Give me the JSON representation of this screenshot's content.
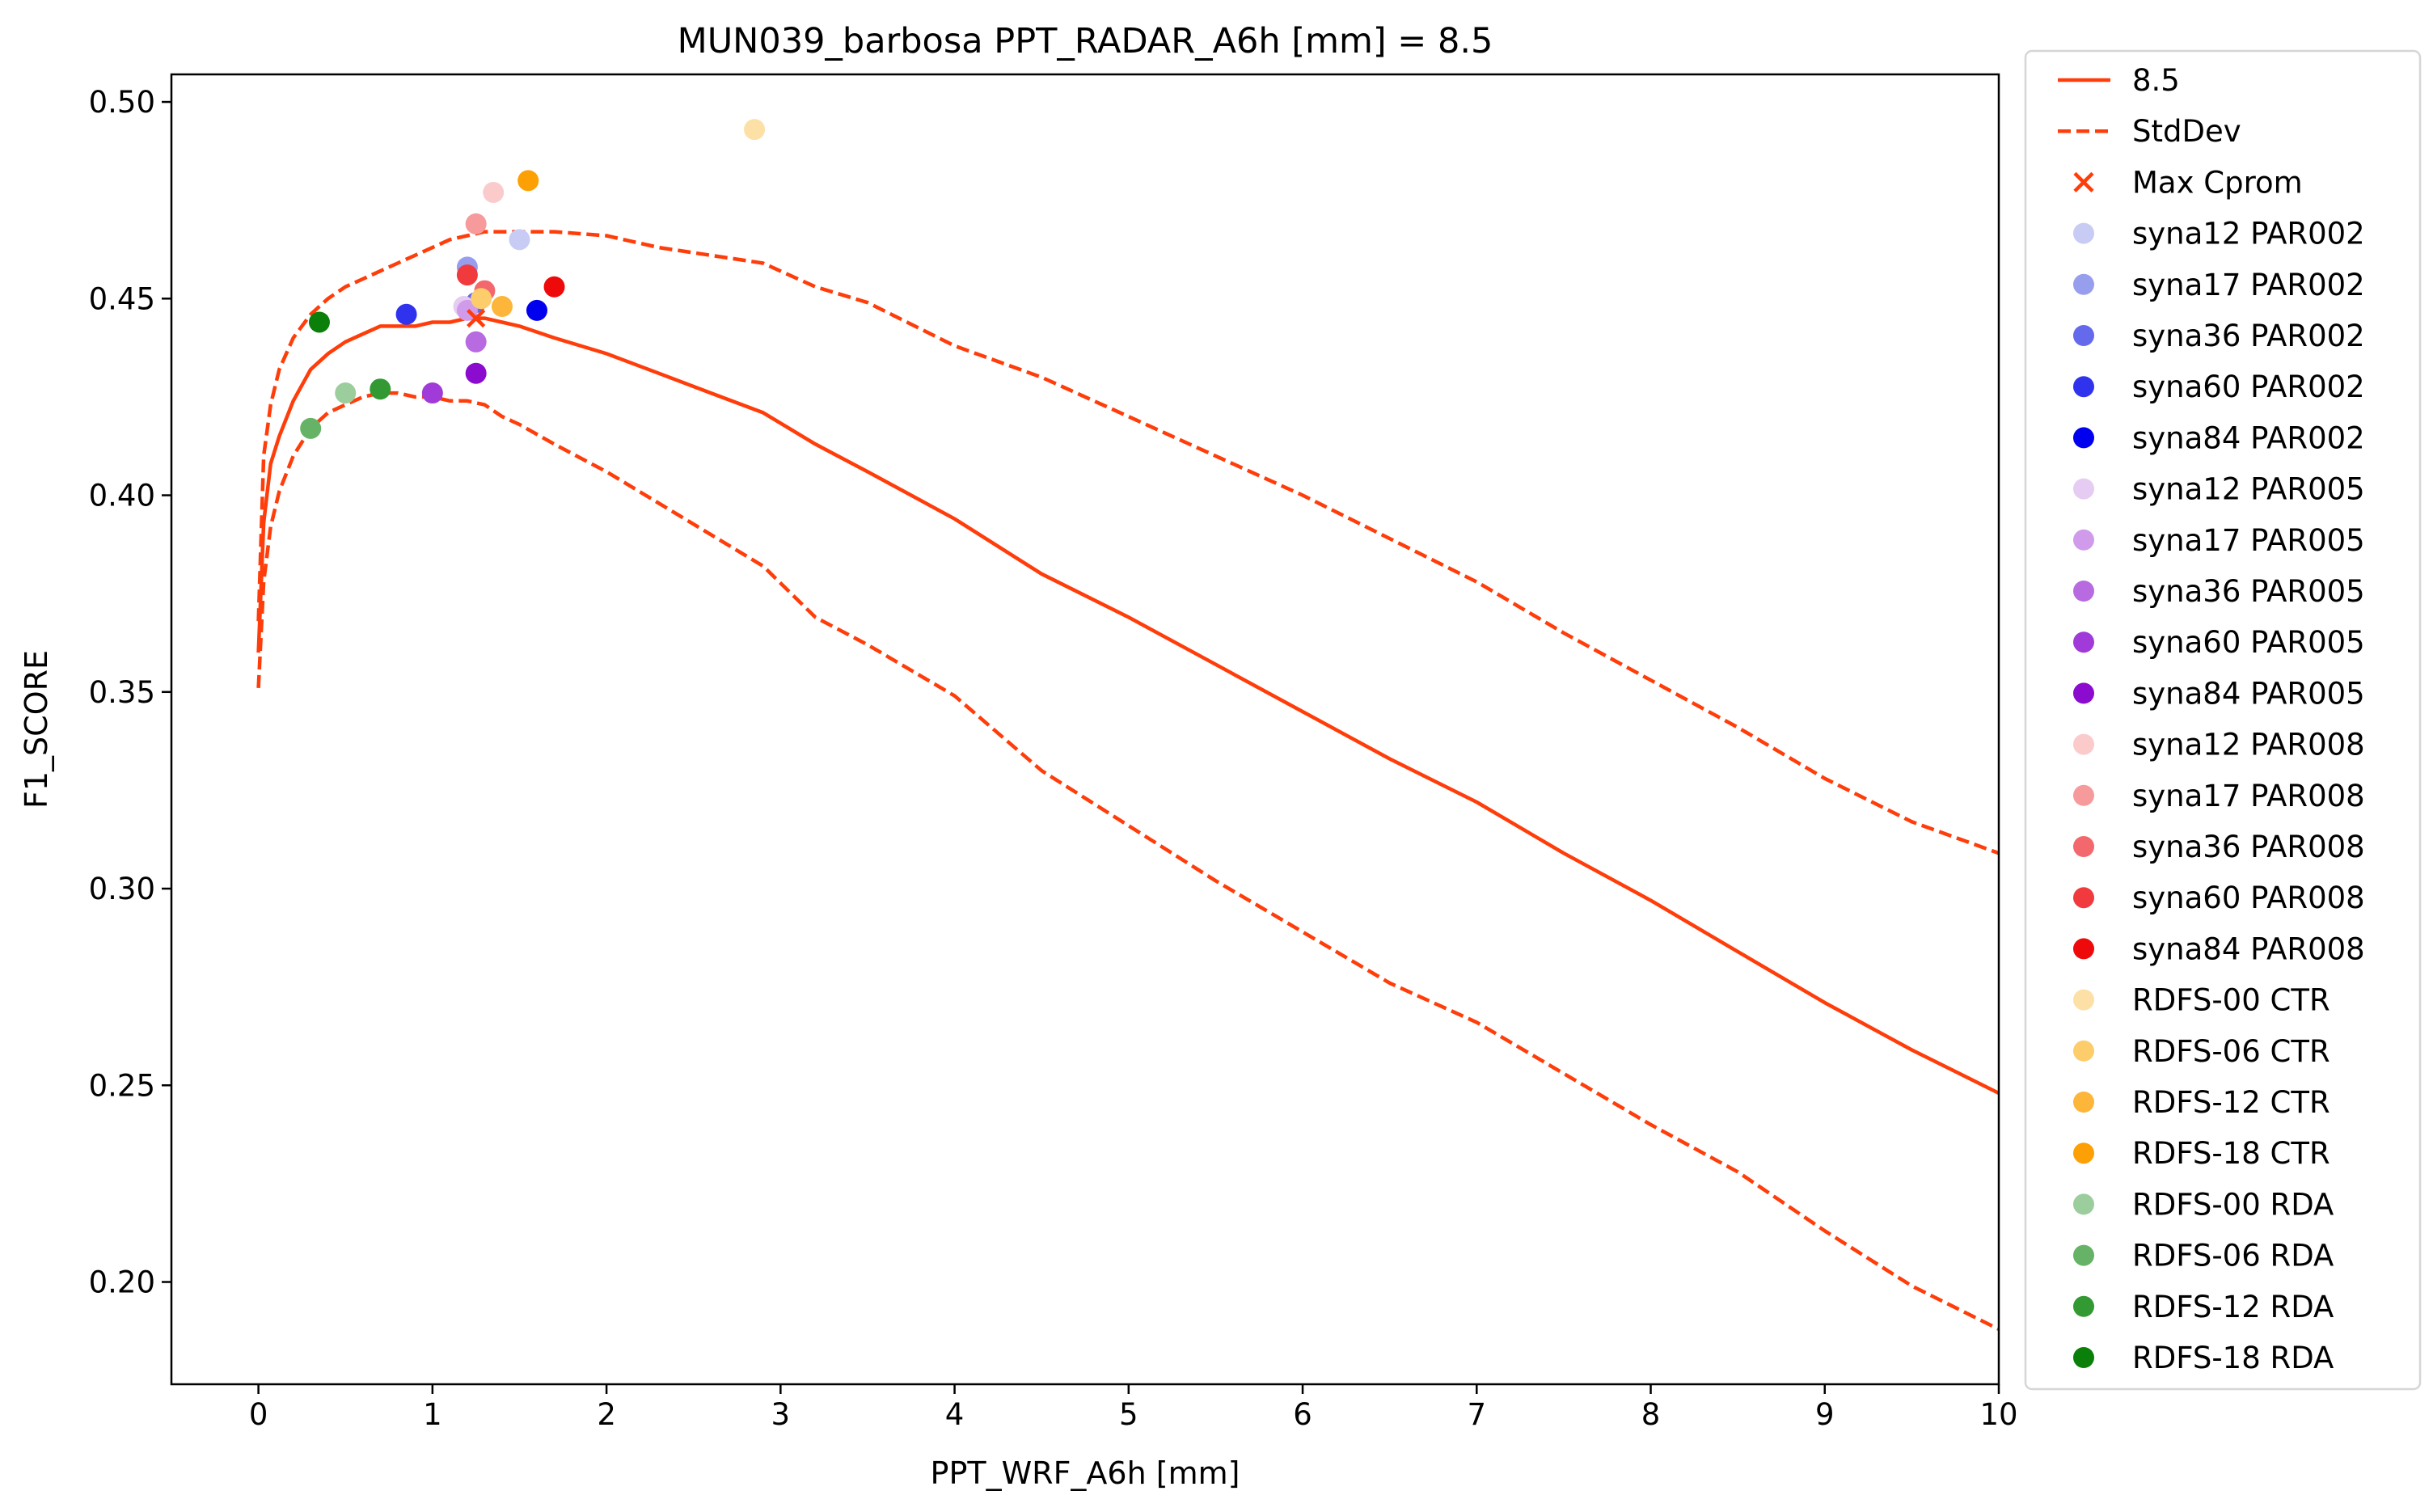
{
  "chart_data": {
    "type": "line",
    "title": "MUN039_barbosa    PPT_RADAR_A6h [mm] = 8.5",
    "xlabel": "PPT_WRF_A6h [mm]",
    "ylabel": "F1_SCORE",
    "xlim": [
      -0.5,
      10
    ],
    "ylim": [
      0.174,
      0.507
    ],
    "xticks": [
      0,
      1,
      2,
      3,
      4,
      5,
      6,
      7,
      8,
      9,
      10
    ],
    "yticks": [
      0.2,
      0.25,
      0.3,
      0.35,
      0.4,
      0.45,
      0.5
    ],
    "ytick_labels": [
      "0.20",
      "0.25",
      "0.30",
      "0.35",
      "0.40",
      "0.45",
      "0.50"
    ],
    "grid": false,
    "legend_position": "outside-right",
    "line_color": "#ff3d0a",
    "lines": [
      {
        "name": "8.5",
        "style": "solid",
        "x": [
          0.0,
          0.03,
          0.07,
          0.12,
          0.2,
          0.3,
          0.4,
          0.5,
          0.6,
          0.7,
          0.8,
          0.9,
          1.0,
          1.1,
          1.2,
          1.3,
          1.4,
          1.5,
          1.7,
          2.0,
          2.3,
          2.6,
          2.9,
          3.2,
          3.5,
          4.0,
          4.5,
          5.0,
          5.5,
          6.0,
          6.5,
          7.0,
          7.5,
          8.0,
          8.5,
          9.0,
          9.5,
          10.0
        ],
        "y": [
          0.36,
          0.393,
          0.408,
          0.415,
          0.424,
          0.432,
          0.436,
          0.439,
          0.441,
          0.443,
          0.443,
          0.443,
          0.444,
          0.444,
          0.445,
          0.445,
          0.444,
          0.443,
          0.44,
          0.436,
          0.431,
          0.426,
          0.421,
          0.413,
          0.406,
          0.394,
          0.38,
          0.369,
          0.357,
          0.345,
          0.333,
          0.322,
          0.309,
          0.297,
          0.284,
          0.271,
          0.259,
          0.248
        ]
      },
      {
        "name": "StdDev",
        "style": "dashed",
        "x": [
          0.0,
          0.03,
          0.07,
          0.12,
          0.2,
          0.3,
          0.4,
          0.5,
          0.6,
          0.7,
          0.8,
          0.9,
          1.0,
          1.1,
          1.2,
          1.3,
          1.4,
          1.5,
          1.7,
          2.0,
          2.3,
          2.6,
          2.9,
          3.2,
          3.5,
          4.0,
          4.5,
          5.0,
          5.5,
          6.0,
          6.5,
          7.0,
          7.5,
          8.0,
          8.5,
          9.0,
          9.5,
          10.0
        ],
        "y": [
          0.368,
          0.41,
          0.423,
          0.432,
          0.44,
          0.446,
          0.45,
          0.453,
          0.455,
          0.457,
          0.459,
          0.461,
          0.463,
          0.465,
          0.466,
          0.467,
          0.467,
          0.467,
          0.467,
          0.466,
          0.463,
          0.461,
          0.459,
          0.453,
          0.449,
          0.438,
          0.43,
          0.42,
          0.41,
          0.4,
          0.389,
          0.378,
          0.365,
          0.353,
          0.341,
          0.328,
          0.317,
          0.309
        ]
      },
      {
        "name": "",
        "style": "dashed",
        "x": [
          0.0,
          0.03,
          0.07,
          0.12,
          0.2,
          0.3,
          0.4,
          0.5,
          0.6,
          0.7,
          0.8,
          0.9,
          1.0,
          1.1,
          1.2,
          1.3,
          1.4,
          1.5,
          1.7,
          2.0,
          2.3,
          2.6,
          2.9,
          3.2,
          3.5,
          4.0,
          4.5,
          5.0,
          5.5,
          6.0,
          6.5,
          7.0,
          7.5,
          8.0,
          8.5,
          9.0,
          9.5,
          10.0
        ],
        "y": [
          0.351,
          0.378,
          0.392,
          0.401,
          0.41,
          0.417,
          0.421,
          0.423,
          0.425,
          0.426,
          0.426,
          0.425,
          0.425,
          0.424,
          0.424,
          0.423,
          0.42,
          0.418,
          0.413,
          0.406,
          0.398,
          0.39,
          0.382,
          0.369,
          0.362,
          0.349,
          0.33,
          0.316,
          0.302,
          0.289,
          0.276,
          0.266,
          0.253,
          0.24,
          0.228,
          0.213,
          0.199,
          0.188
        ]
      }
    ],
    "max_marker": {
      "name": "Max Cprom",
      "x": 1.25,
      "y": 0.445
    },
    "series": [
      {
        "name": "syna12 PAR002",
        "color": "#c8ccf4",
        "points": [
          [
            1.5,
            0.465
          ]
        ]
      },
      {
        "name": "syna17 PAR002",
        "color": "#979eed",
        "points": [
          [
            1.2,
            0.458
          ]
        ]
      },
      {
        "name": "syna36 PAR002",
        "color": "#6569ec",
        "points": [
          [
            1.25,
            0.449
          ]
        ]
      },
      {
        "name": "syna60 PAR002",
        "color": "#3033ed",
        "points": [
          [
            0.85,
            0.446
          ]
        ]
      },
      {
        "name": "syna84 PAR002",
        "color": "#0000ee",
        "points": [
          [
            1.6,
            0.447
          ]
        ]
      },
      {
        "name": "syna12 PAR005",
        "color": "#e6cbf2",
        "points": [
          [
            1.18,
            0.448
          ]
        ]
      },
      {
        "name": "syna17 PAR005",
        "color": "#d09bea",
        "points": [
          [
            1.2,
            0.447
          ]
        ]
      },
      {
        "name": "syna36 PAR005",
        "color": "#b86ae0",
        "points": [
          [
            1.25,
            0.439
          ]
        ]
      },
      {
        "name": "syna60 PAR005",
        "color": "#a03ad8",
        "points": [
          [
            1.0,
            0.426
          ]
        ]
      },
      {
        "name": "syna84 PAR005",
        "color": "#8b0bcf",
        "points": [
          [
            1.25,
            0.431
          ]
        ]
      },
      {
        "name": "syna12 PAR008",
        "color": "#fbcbcc",
        "points": [
          [
            1.35,
            0.477
          ]
        ]
      },
      {
        "name": "syna17 PAR008",
        "color": "#f79a9c",
        "points": [
          [
            1.25,
            0.469
          ]
        ]
      },
      {
        "name": "syna36 PAR008",
        "color": "#f3686c",
        "points": [
          [
            1.3,
            0.452
          ]
        ]
      },
      {
        "name": "syna60 PAR008",
        "color": "#f03a3d",
        "points": [
          [
            1.2,
            0.456
          ]
        ]
      },
      {
        "name": "syna84 PAR008",
        "color": "#ee0a0a",
        "points": [
          [
            1.7,
            0.453
          ]
        ]
      },
      {
        "name": "RDFS-00 CTR",
        "color": "#fde0a6",
        "points": [
          [
            2.85,
            0.493
          ]
        ]
      },
      {
        "name": "RDFS-06 CTR",
        "color": "#fdcc6b",
        "points": [
          [
            1.28,
            0.45
          ]
        ]
      },
      {
        "name": "RDFS-12 CTR",
        "color": "#fdb53a",
        "points": [
          [
            1.4,
            0.448
          ]
        ]
      },
      {
        "name": "RDFS-18 CTR",
        "color": "#fda005",
        "points": [
          [
            1.55,
            0.48
          ]
        ]
      },
      {
        "name": "RDFS-00 RDA",
        "color": "#9ccd9c",
        "points": [
          [
            0.5,
            0.426
          ]
        ]
      },
      {
        "name": "RDFS-06 RDA",
        "color": "#66b266",
        "points": [
          [
            0.3,
            0.417
          ]
        ]
      },
      {
        "name": "RDFS-12 RDA",
        "color": "#339933",
        "points": [
          [
            0.7,
            0.427
          ]
        ]
      },
      {
        "name": "RDFS-18 RDA",
        "color": "#0a7f0a",
        "points": [
          [
            0.35,
            0.444
          ]
        ]
      }
    ]
  }
}
